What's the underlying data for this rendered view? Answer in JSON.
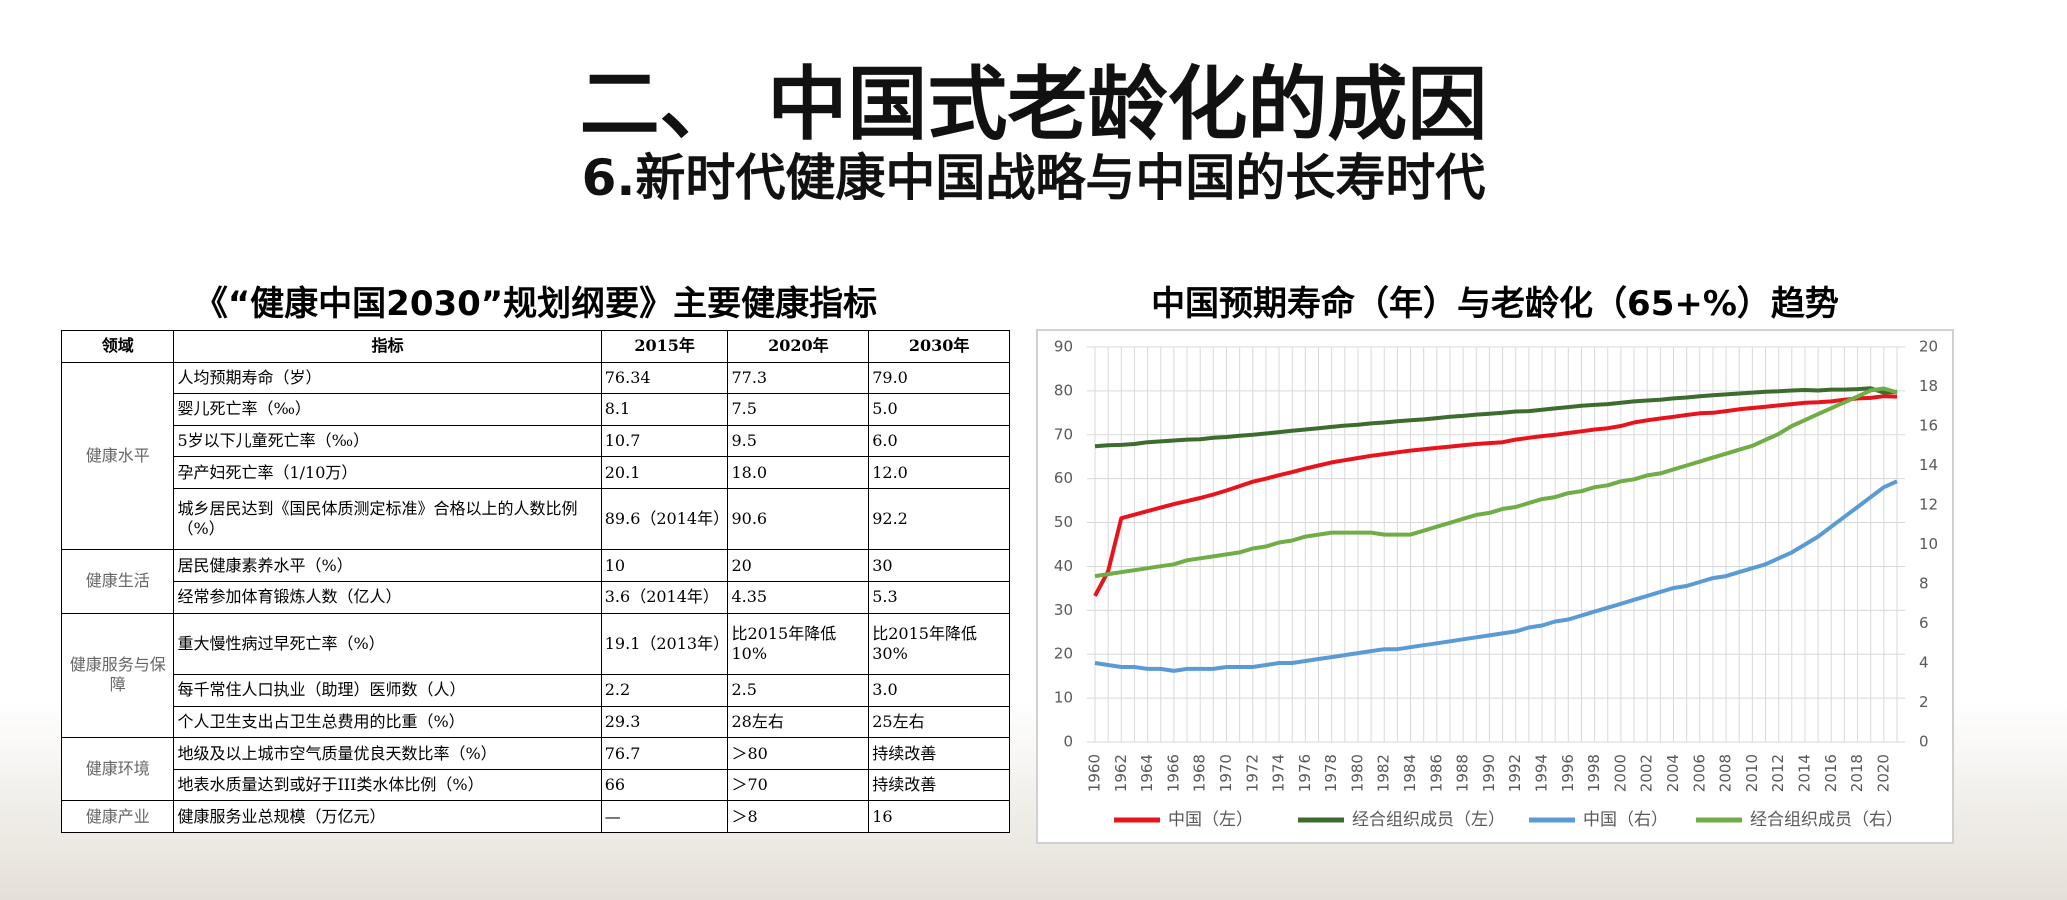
{
  "header": {
    "title": "二、 中国式老龄化的成因",
    "subtitle": "6.新时代健康中国战略与中国的长寿时代"
  },
  "table": {
    "title": "《“健康中国2030”规划纲要》主要健康指标",
    "columns": [
      "领域",
      "指标",
      "2015年",
      "2020年",
      "2030年"
    ],
    "groups": [
      {
        "domain": "健康水平",
        "rows": [
          [
            "人均预期寿命（岁）",
            "76.34",
            "77.3",
            "79.0"
          ],
          [
            "婴儿死亡率（‰）",
            "8.1",
            "7.5",
            "5.0"
          ],
          [
            "5岁以下儿童死亡率（‰）",
            "10.7",
            "9.5",
            "6.0"
          ],
          [
            "孕产妇死亡率（1/10万）",
            "20.1",
            "18.0",
            "12.0"
          ],
          [
            "城乡居民达到《国民体质测定标准》合格以上的人数比例（%）",
            "89.6（2014年）",
            "90.6",
            "92.2"
          ]
        ]
      },
      {
        "domain": "健康生活",
        "rows": [
          [
            "居民健康素养水平（%）",
            "10",
            "20",
            "30"
          ],
          [
            "经常参加体育锻炼人数（亿人）",
            "3.6（2014年）",
            "4.35",
            "5.3"
          ]
        ]
      },
      {
        "domain": "健康服务与保障",
        "rows": [
          [
            "重大慢性病过早死亡率（%）",
            "19.1（2013年）",
            "比2015年降低10%",
            "比2015年降低30%"
          ],
          [
            "每千常住人口执业（助理）医师数（人）",
            "2.2",
            "2.5",
            "3.0"
          ],
          [
            "个人卫生支出占卫生总费用的比重（%）",
            "29.3",
            "28左右",
            "25左右"
          ]
        ]
      },
      {
        "domain": "健康环境",
        "rows": [
          [
            "地级及以上城市空气质量优良天数比率（%）",
            "76.7",
            "＞80",
            "持续改善"
          ],
          [
            "地表水质量达到或好于III类水体比例（%）",
            "66",
            "＞70",
            "持续改善"
          ]
        ]
      },
      {
        "domain": "健康产业",
        "rows": [
          [
            "健康服务业总规模（万亿元）",
            "—",
            "＞8",
            "16"
          ]
        ]
      }
    ]
  },
  "chart_data": {
    "type": "line",
    "title": "中国预期寿命（年）与老龄化（65+%）趋势",
    "x": [
      1960,
      1961,
      1962,
      1963,
      1964,
      1965,
      1966,
      1967,
      1968,
      1969,
      1970,
      1971,
      1972,
      1973,
      1974,
      1975,
      1976,
      1977,
      1978,
      1979,
      1980,
      1981,
      1982,
      1983,
      1984,
      1985,
      1986,
      1987,
      1988,
      1989,
      1990,
      1991,
      1992,
      1993,
      1994,
      1995,
      1996,
      1997,
      1998,
      1999,
      2000,
      2001,
      2002,
      2003,
      2004,
      2005,
      2006,
      2007,
      2008,
      2009,
      2010,
      2011,
      2012,
      2013,
      2014,
      2015,
      2016,
      2017,
      2018,
      2019,
      2020,
      2021
    ],
    "xlim": [
      1960,
      2021
    ],
    "xticks": [
      1960,
      1962,
      1964,
      1966,
      1968,
      1970,
      1972,
      1974,
      1976,
      1978,
      1980,
      1982,
      1984,
      1986,
      1988,
      1990,
      1992,
      1994,
      1996,
      1998,
      2000,
      2002,
      2004,
      2006,
      2008,
      2010,
      2012,
      2014,
      2016,
      2018,
      2020
    ],
    "ylim": [
      0,
      90
    ],
    "yticks": [
      0,
      10,
      20,
      30,
      40,
      50,
      60,
      70,
      80,
      90
    ],
    "y2lim": [
      0,
      20
    ],
    "y2ticks": [
      0,
      2,
      4,
      6,
      8,
      10,
      12,
      14,
      16,
      18,
      20
    ],
    "grid": true,
    "legend": "bottom",
    "series": [
      {
        "name": "中国（左）",
        "color": "#e8141c",
        "values": [
          33.3,
          38.9,
          51.0,
          51.8,
          52.6,
          53.4,
          54.2,
          54.9,
          55.6,
          56.4,
          57.3,
          58.3,
          59.3,
          60.0,
          60.8,
          61.5,
          62.3,
          63.0,
          63.7,
          64.2,
          64.7,
          65.2,
          65.6,
          66.0,
          66.4,
          66.7,
          67.0,
          67.3,
          67.6,
          67.9,
          68.1,
          68.3,
          68.9,
          69.3,
          69.7,
          70.0,
          70.4,
          70.8,
          71.2,
          71.5,
          72.0,
          72.8,
          73.3,
          73.7,
          74.1,
          74.5,
          74.9,
          75.0,
          75.4,
          75.8,
          76.1,
          76.4,
          76.7,
          77.0,
          77.3,
          77.4,
          77.6,
          78.0,
          78.3,
          78.4,
          78.8,
          78.7
        ]
      },
      {
        "name": "经合组织成员（左）",
        "color": "#3e6b2e",
        "values": [
          67.4,
          67.6,
          67.7,
          67.9,
          68.3,
          68.5,
          68.7,
          68.9,
          69.0,
          69.3,
          69.5,
          69.8,
          70.0,
          70.3,
          70.6,
          70.9,
          71.2,
          71.5,
          71.8,
          72.1,
          72.3,
          72.6,
          72.8,
          73.1,
          73.3,
          73.5,
          73.8,
          74.1,
          74.3,
          74.6,
          74.8,
          75.0,
          75.3,
          75.4,
          75.7,
          76.0,
          76.3,
          76.6,
          76.8,
          77.0,
          77.3,
          77.6,
          77.8,
          78.0,
          78.3,
          78.5,
          78.8,
          79.0,
          79.2,
          79.4,
          79.6,
          79.8,
          79.9,
          80.1,
          80.2,
          80.1,
          80.3,
          80.3,
          80.4,
          80.6,
          79.6,
          79.8
        ]
      },
      {
        "name": "中国（右）",
        "color": "#5b9bd5",
        "axis": "y2",
        "values": [
          4.0,
          3.9,
          3.8,
          3.8,
          3.7,
          3.7,
          3.6,
          3.7,
          3.7,
          3.7,
          3.8,
          3.8,
          3.8,
          3.9,
          4.0,
          4.0,
          4.1,
          4.2,
          4.3,
          4.4,
          4.5,
          4.6,
          4.7,
          4.7,
          4.8,
          4.9,
          5.0,
          5.1,
          5.2,
          5.3,
          5.4,
          5.5,
          5.6,
          5.8,
          5.9,
          6.1,
          6.2,
          6.4,
          6.6,
          6.8,
          7.0,
          7.2,
          7.4,
          7.6,
          7.8,
          7.9,
          8.1,
          8.3,
          8.4,
          8.6,
          8.8,
          9.0,
          9.3,
          9.6,
          10.0,
          10.4,
          10.9,
          11.4,
          11.9,
          12.4,
          12.9,
          13.2
        ]
      },
      {
        "name": "经合组织成员（右）",
        "color": "#70ad47",
        "axis": "y2",
        "values": [
          8.4,
          8.5,
          8.6,
          8.7,
          8.8,
          8.9,
          9.0,
          9.2,
          9.3,
          9.4,
          9.5,
          9.6,
          9.8,
          9.9,
          10.1,
          10.2,
          10.4,
          10.5,
          10.6,
          10.6,
          10.6,
          10.6,
          10.5,
          10.5,
          10.5,
          10.7,
          10.9,
          11.1,
          11.3,
          11.5,
          11.6,
          11.8,
          11.9,
          12.1,
          12.3,
          12.4,
          12.6,
          12.7,
          12.9,
          13.0,
          13.2,
          13.3,
          13.5,
          13.6,
          13.8,
          14.0,
          14.2,
          14.4,
          14.6,
          14.8,
          15.0,
          15.3,
          15.6,
          16.0,
          16.3,
          16.6,
          16.9,
          17.2,
          17.5,
          17.8,
          17.9,
          17.7
        ]
      }
    ]
  }
}
